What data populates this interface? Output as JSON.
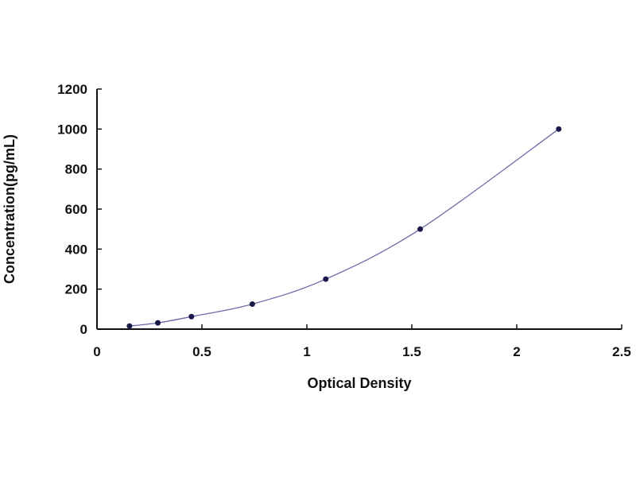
{
  "chart_data": {
    "type": "scatter",
    "title": "",
    "xlabel": "Optical Density",
    "ylabel": "Concentration(pg/mL)",
    "xlim": [
      0,
      2.5
    ],
    "ylim": [
      0,
      1200
    ],
    "x_ticks": [
      "0",
      "0.5",
      "1",
      "1.5",
      "2",
      "2.5"
    ],
    "y_ticks": [
      "0",
      "200",
      "400",
      "600",
      "800",
      "1000",
      "1200"
    ],
    "grid": false,
    "trendline": "smooth curve",
    "colors": {
      "points": "#1a1a4a",
      "curve": "#6a6aa8",
      "axes": "#111111"
    },
    "series": [
      {
        "x": [
          0.155,
          0.29,
          0.45,
          0.74,
          1.09,
          1.54,
          2.2
        ],
        "y": [
          15.6,
          31.25,
          62.5,
          125,
          250,
          500,
          1000
        ]
      }
    ]
  }
}
